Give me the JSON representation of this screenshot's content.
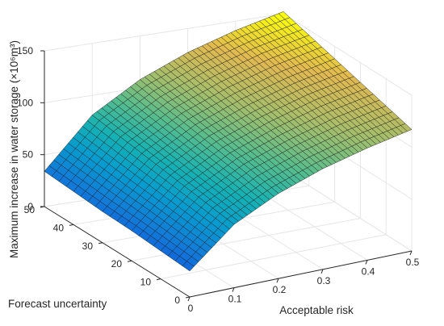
{
  "chart_data": {
    "type": "surface",
    "title": "",
    "xlabel": "Acceptable risk",
    "ylabel": "Forecast uncertainty",
    "zlabel": "Maximum increase in water storage (×10⁶m³)",
    "xlim": [
      0,
      0.5
    ],
    "ylim": [
      0,
      50
    ],
    "zlim": [
      0,
      150
    ],
    "x_ticks": [
      "0",
      "0.1",
      "0.2",
      "0.3",
      "0.4",
      "0.5"
    ],
    "y_ticks": [
      "0",
      "10",
      "20",
      "30",
      "40",
      "50"
    ],
    "z_ticks": [
      "0",
      "50",
      "100",
      "150"
    ],
    "grid": true,
    "box": "open",
    "colormap": "parula",
    "mesh": "black",
    "grid_points": {
      "x": [
        0.0,
        0.1,
        0.2,
        0.3,
        0.4,
        0.5
      ],
      "y": [
        0,
        10,
        20,
        30,
        40,
        50
      ]
    },
    "values": [
      [
        25,
        61,
        82,
        97,
        108,
        117
      ],
      [
        27,
        65,
        88,
        103,
        115,
        124
      ],
      [
        29,
        69,
        93,
        109,
        122,
        131
      ],
      [
        30,
        73,
        98,
        115,
        128,
        138
      ],
      [
        32,
        77,
        103,
        121,
        135,
        145
      ],
      [
        34,
        81,
        108,
        127,
        141,
        152
      ]
    ],
    "values_note": "rows = forecast uncertainty (y), columns = acceptable risk (x)"
  }
}
